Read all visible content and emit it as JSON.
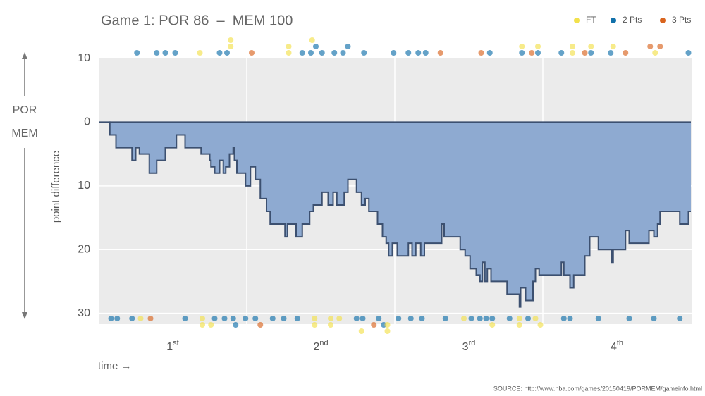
{
  "chart_data": {
    "type": "step",
    "title": "Game 1: POR 86  –  MEM 100",
    "ylabel": "point difference",
    "xlabel": "time →",
    "side_labels": {
      "top": "POR",
      "bottom": "MEM"
    },
    "source": "SOURCE: http://www.nba.com/games/20150419/PORMEM/gameinfo.html",
    "xlim": [
      0,
      48
    ],
    "ylim": [
      -10,
      31.7
    ],
    "yticks": [
      {
        "value": -10,
        "label": "10"
      },
      0,
      10,
      20,
      30
    ],
    "xgrid": [
      12,
      24,
      36
    ],
    "quarters": [
      {
        "value": 6,
        "label": "1",
        "sup": "st"
      },
      {
        "value": 18,
        "label": "2",
        "sup": "nd"
      },
      {
        "value": 30,
        "label": "3",
        "sup": "rd"
      },
      {
        "value": 42,
        "label": "4",
        "sup": "th"
      }
    ],
    "area_color": "#8eaad1",
    "line_color": "#3c5070",
    "grid": true,
    "x": [
      0,
      0.9,
      1.4,
      2.7,
      3.0,
      3.3,
      4.1,
      4.7,
      5.4,
      6.3,
      7.0,
      8.3,
      9.0,
      9.1,
      9.4,
      9.8,
      10.1,
      10.3,
      10.6,
      10.9,
      11.0,
      11.2,
      11.9,
      12.3,
      12.7,
      13.1,
      13.6,
      13.9,
      15.1,
      15.3,
      16.0,
      16.5,
      17.1,
      17.4,
      18.1,
      18.6,
      19.0,
      19.3,
      19.9,
      20.2,
      20.9,
      21.3,
      21.6,
      21.9,
      22.6,
      23.0,
      23.3,
      23.5,
      23.8,
      24.2,
      25.1,
      25.4,
      25.7,
      26.1,
      26.4,
      27.8,
      28.0,
      29.3,
      29.7,
      30.1,
      30.6,
      30.9,
      31.1,
      31.3,
      31.5,
      31.8,
      33.1,
      34.1,
      34.2,
      34.6,
      35.2,
      35.4,
      35.7,
      37.5,
      37.7,
      38.2,
      38.5,
      39.4,
      39.8,
      40.5,
      41.6,
      41.7,
      42.7,
      43.0,
      44.6,
      45.0,
      45.3,
      45.5,
      47.1,
      47.8,
      48
    ],
    "values": [
      0,
      2,
      4,
      6,
      4,
      5,
      8,
      6,
      4,
      2,
      4,
      5,
      6,
      7,
      8,
      6,
      8,
      7,
      5,
      4,
      6,
      8,
      10,
      7,
      9,
      12,
      14,
      16,
      18,
      16,
      18,
      16,
      14,
      13,
      11,
      13,
      11,
      13,
      11,
      9,
      11,
      13,
      12,
      14,
      16,
      18,
      19,
      21,
      19,
      21,
      19,
      21,
      19,
      21,
      19,
      16,
      18,
      20,
      21,
      23,
      24,
      25,
      22,
      25,
      23,
      25,
      27,
      29,
      26,
      28,
      25,
      23,
      24,
      22,
      24,
      26,
      24,
      21,
      18,
      20,
      22,
      20,
      17,
      19,
      17,
      18,
      16,
      14,
      16,
      14,
      14
    ],
    "scores": {
      "legend": "top-right",
      "series": [
        {
          "name": "FT",
          "color": "#f2e14c",
          "top": [
            8.2,
            10.7,
            10.7,
            15.4,
            15.4,
            17.3,
            34.3,
            35.6,
            38.4,
            38.4,
            39.9,
            41.7,
            45.1
          ],
          "bottom": [
            3.4,
            8.4,
            8.4,
            9.1,
            17.5,
            17.5,
            18.8,
            18.8,
            19.5,
            21.3,
            23.4,
            23.4,
            29.6,
            31.9,
            34.1,
            34.1,
            35.4,
            35.8
          ]
        },
        {
          "name": "2 Pts",
          "color": "#1170aa",
          "top": [
            3.1,
            4.7,
            5.4,
            6.2,
            9.8,
            10.4,
            16.5,
            17.2,
            17.6,
            18.1,
            19.1,
            19.8,
            20.2,
            21.5,
            23.9,
            25.1,
            25.9,
            26.5,
            31.7,
            34.3,
            35.6,
            37.5,
            39.9,
            41.5,
            47.8
          ],
          "bottom": [
            1.0,
            1.5,
            2.7,
            7.0,
            9.4,
            10.2,
            10.9,
            11.1,
            11.9,
            12.7,
            14.1,
            15.0,
            16.1,
            20.9,
            21.4,
            22.7,
            23.1,
            24.3,
            25.3,
            26.2,
            28.1,
            30.2,
            30.9,
            31.4,
            31.9,
            33.3,
            34.8,
            37.7,
            38.2,
            40.5,
            43.0,
            45.0,
            47.1
          ]
        },
        {
          "name": "3 Pts",
          "color": "#d9641e",
          "top": [
            12.4,
            27.7,
            31.0,
            35.1,
            39.4,
            42.7,
            44.7,
            45.5
          ],
          "bottom": [
            4.2,
            13.1,
            22.3
          ]
        }
      ]
    }
  }
}
